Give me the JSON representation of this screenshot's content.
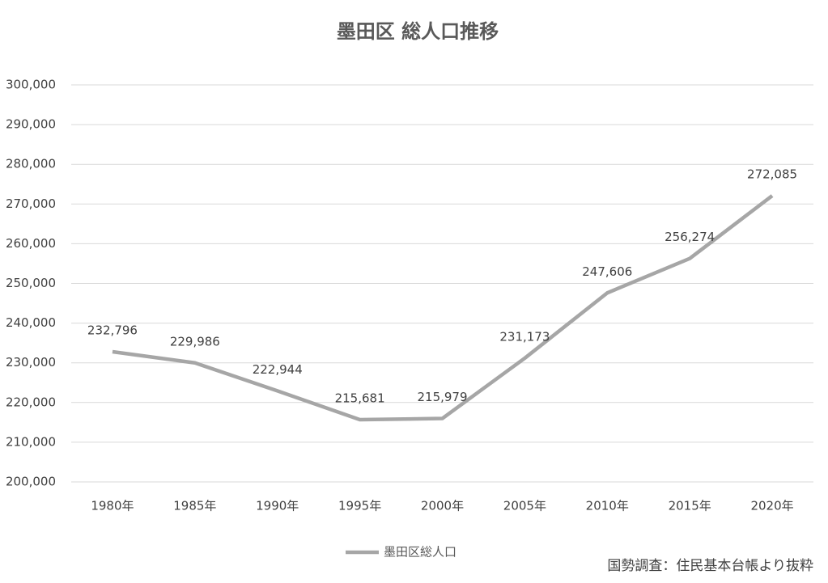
{
  "chart_data": {
    "type": "line",
    "title": "墨田区 総人口推移",
    "categories": [
      "1980年",
      "1985年",
      "1990年",
      "1995年",
      "2000年",
      "2005年",
      "2010年",
      "2015年",
      "2020年"
    ],
    "series": [
      {
        "name": "墨田区総人口",
        "color": "#a6a6a6",
        "values": [
          232796,
          229986,
          222944,
          215681,
          215979,
          231173,
          247606,
          256274,
          272085
        ],
        "value_labels": [
          "232,796",
          "229,986",
          "222,944",
          "215,681",
          "215,979",
          "231,173",
          "247,606",
          "256,274",
          "272,085"
        ]
      }
    ],
    "ylim": [
      200000,
      300000
    ],
    "yticks": [
      {
        "value": 200000,
        "label": "200,000"
      },
      {
        "value": 210000,
        "label": "210,000"
      },
      {
        "value": 220000,
        "label": "220,000"
      },
      {
        "value": 230000,
        "label": "230,000"
      },
      {
        "value": 240000,
        "label": "240,000"
      },
      {
        "value": 250000,
        "label": "250,000"
      },
      {
        "value": 260000,
        "label": "260,000"
      },
      {
        "value": 270000,
        "label": "270,000"
      },
      {
        "value": 280000,
        "label": "280,000"
      },
      {
        "value": 290000,
        "label": "290,000"
      },
      {
        "value": 300000,
        "label": "300,000"
      }
    ],
    "grid": true,
    "legend": "bottom",
    "source": "国勢調査：住民基本台帳より抜粋"
  }
}
